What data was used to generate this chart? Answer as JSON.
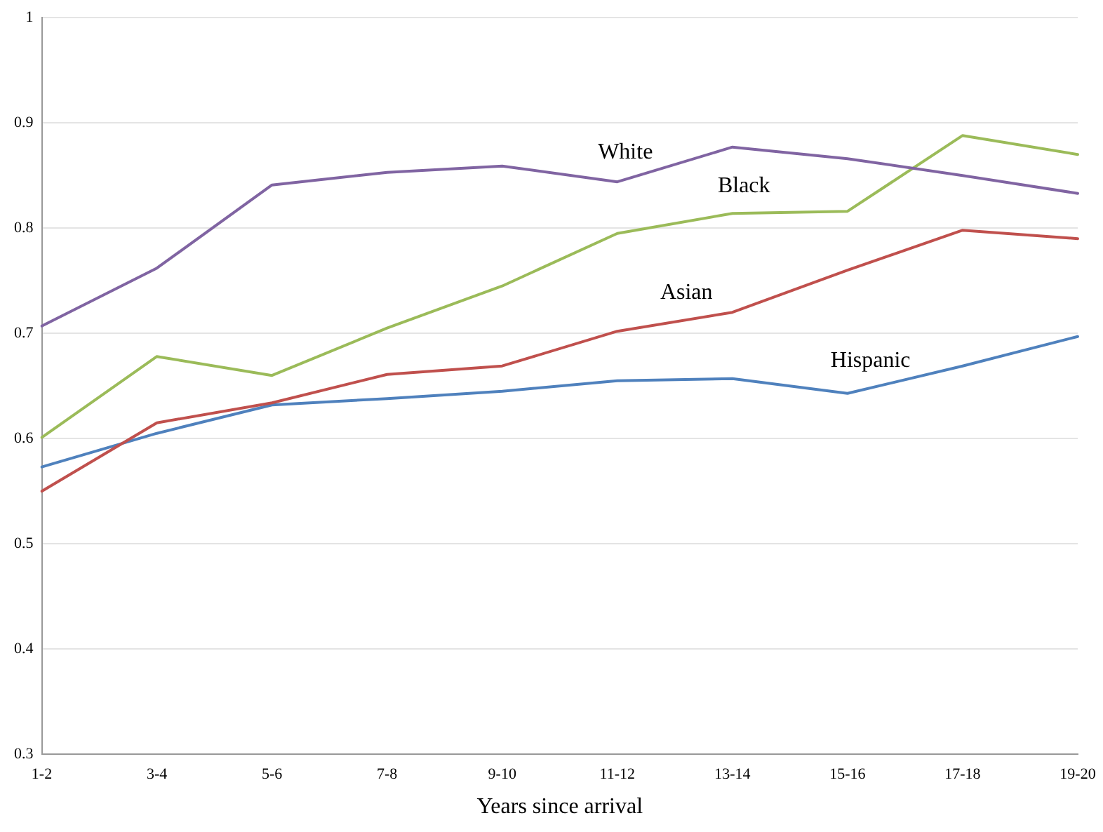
{
  "chart_data": {
    "type": "line",
    "xlabel": "Years since arrival",
    "categories": [
      "1-2",
      "3-4",
      "5-6",
      "7-8",
      "9-10",
      "11-12",
      "13-14",
      "15-16",
      "17-18",
      "19-20"
    ],
    "series": [
      {
        "name": "White",
        "color": "#8064a2",
        "values": [
          0.707,
          0.762,
          0.841,
          0.853,
          0.859,
          0.844,
          0.877,
          0.866,
          0.85,
          0.833
        ]
      },
      {
        "name": "Black",
        "color": "#9bbb59",
        "values": [
          0.601,
          0.678,
          0.66,
          0.705,
          0.745,
          0.795,
          0.814,
          0.816,
          0.888,
          0.87
        ]
      },
      {
        "name": "Asian",
        "color": "#c0504d",
        "values": [
          0.55,
          0.615,
          0.634,
          0.661,
          0.669,
          0.702,
          0.72,
          0.76,
          0.798,
          0.79
        ]
      },
      {
        "name": "Hispanic",
        "color": "#4f81bd",
        "values": [
          0.573,
          0.605,
          0.632,
          0.638,
          0.645,
          0.655,
          0.657,
          0.643,
          0.669,
          0.697
        ]
      }
    ],
    "ylim": [
      0.3,
      1
    ],
    "yticks": [
      0.3,
      0.4,
      0.5,
      0.6,
      0.7,
      0.8,
      0.9,
      1
    ],
    "grid": "y",
    "marker": "none",
    "line_style": "solid",
    "legend": false
  }
}
